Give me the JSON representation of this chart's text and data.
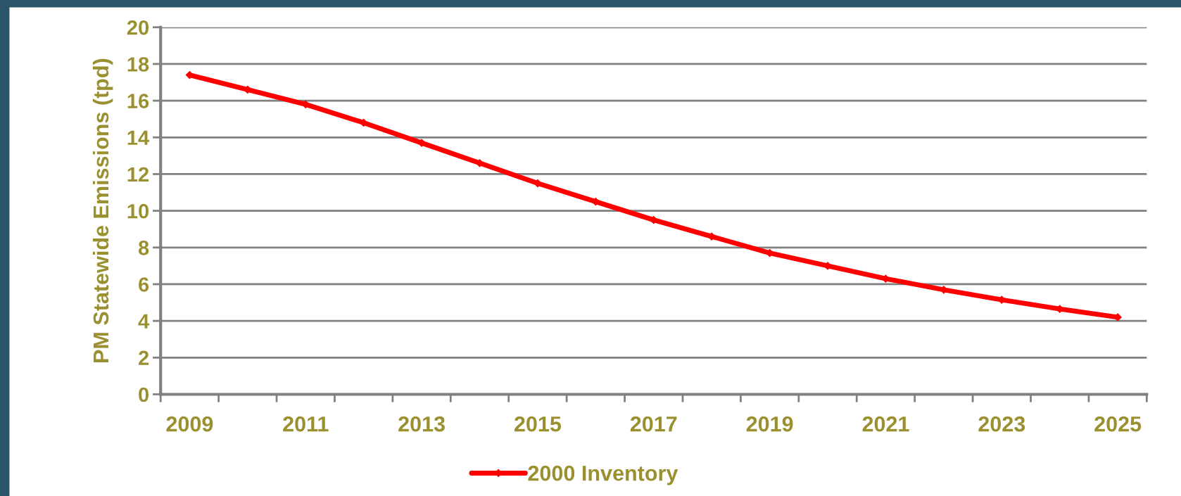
{
  "chart_data": {
    "type": "line",
    "ylabel": "PM Statewide Emissions (tpd)",
    "categories": [
      "2009",
      null,
      "2011",
      null,
      "2013",
      null,
      "2015",
      null,
      "2017",
      null,
      "2019",
      null,
      "2021",
      null,
      "2023",
      null,
      "2025"
    ],
    "series": [
      {
        "name": "2000 Inventory",
        "color": "#ff0000",
        "values": [
          17.4,
          16.6,
          15.8,
          14.8,
          13.7,
          12.6,
          11.5,
          10.5,
          9.5,
          8.6,
          7.7,
          7.0,
          6.3,
          5.7,
          5.15,
          4.65,
          4.2
        ]
      }
    ],
    "ylim": [
      0,
      20
    ],
    "yticks": [
      0,
      2,
      4,
      6,
      8,
      10,
      12,
      14,
      16,
      18,
      20
    ],
    "grid": "y",
    "legend": "bottom",
    "marker": "diamond",
    "line_style": "solid"
  }
}
